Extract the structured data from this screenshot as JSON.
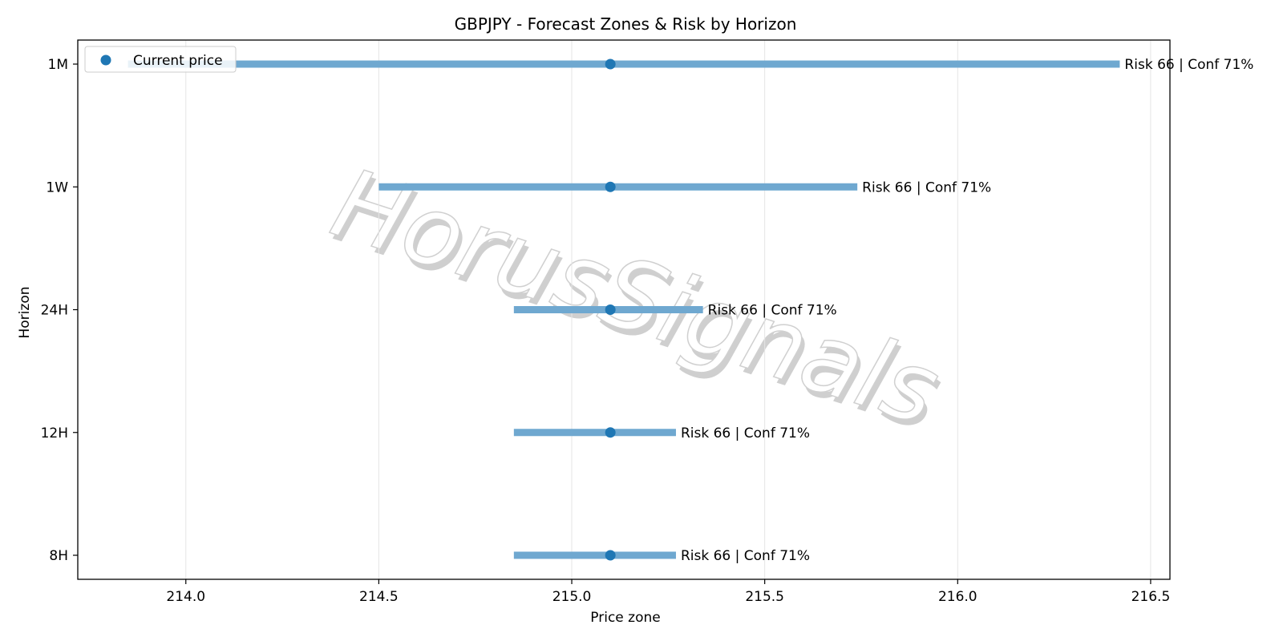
{
  "chart_data": {
    "type": "range",
    "title": "GBPJPY - Forecast Zones & Risk by Horizon",
    "xlabel": "Price zone",
    "ylabel": "Horizon",
    "xlim": [
      213.72,
      216.55
    ],
    "xticks": [
      214.0,
      214.5,
      215.0,
      215.5,
      216.0,
      216.5
    ],
    "xtick_labels": [
      "214.0",
      "214.5",
      "215.0",
      "215.5",
      "216.0",
      "216.5"
    ],
    "categories": [
      "1M",
      "1W",
      "24H",
      "12H",
      "8H"
    ],
    "current_price": 215.1,
    "series": [
      {
        "horizon": "1M",
        "low": 213.85,
        "high": 216.42,
        "annotation": "Risk 66 | Conf 71%"
      },
      {
        "horizon": "1W",
        "low": 214.5,
        "high": 215.74,
        "annotation": "Risk 66 | Conf 71%"
      },
      {
        "horizon": "24H",
        "low": 214.85,
        "high": 215.34,
        "annotation": "Risk 66 | Conf 71%"
      },
      {
        "horizon": "12H",
        "low": 214.85,
        "high": 215.27,
        "annotation": "Risk 66 | Conf 71%"
      },
      {
        "horizon": "8H",
        "low": 214.85,
        "high": 215.27,
        "annotation": "Risk 66 | Conf 71%"
      }
    ],
    "legend": {
      "label": "Current price",
      "placement": "top-left"
    },
    "grid": {
      "x": true,
      "y": false
    },
    "colors": {
      "range": "#6fa8d0",
      "point": "#1f77b4",
      "grid": "#e5e5e5",
      "watermark": "#d6d6d6"
    }
  },
  "watermark": "HorusSignals"
}
